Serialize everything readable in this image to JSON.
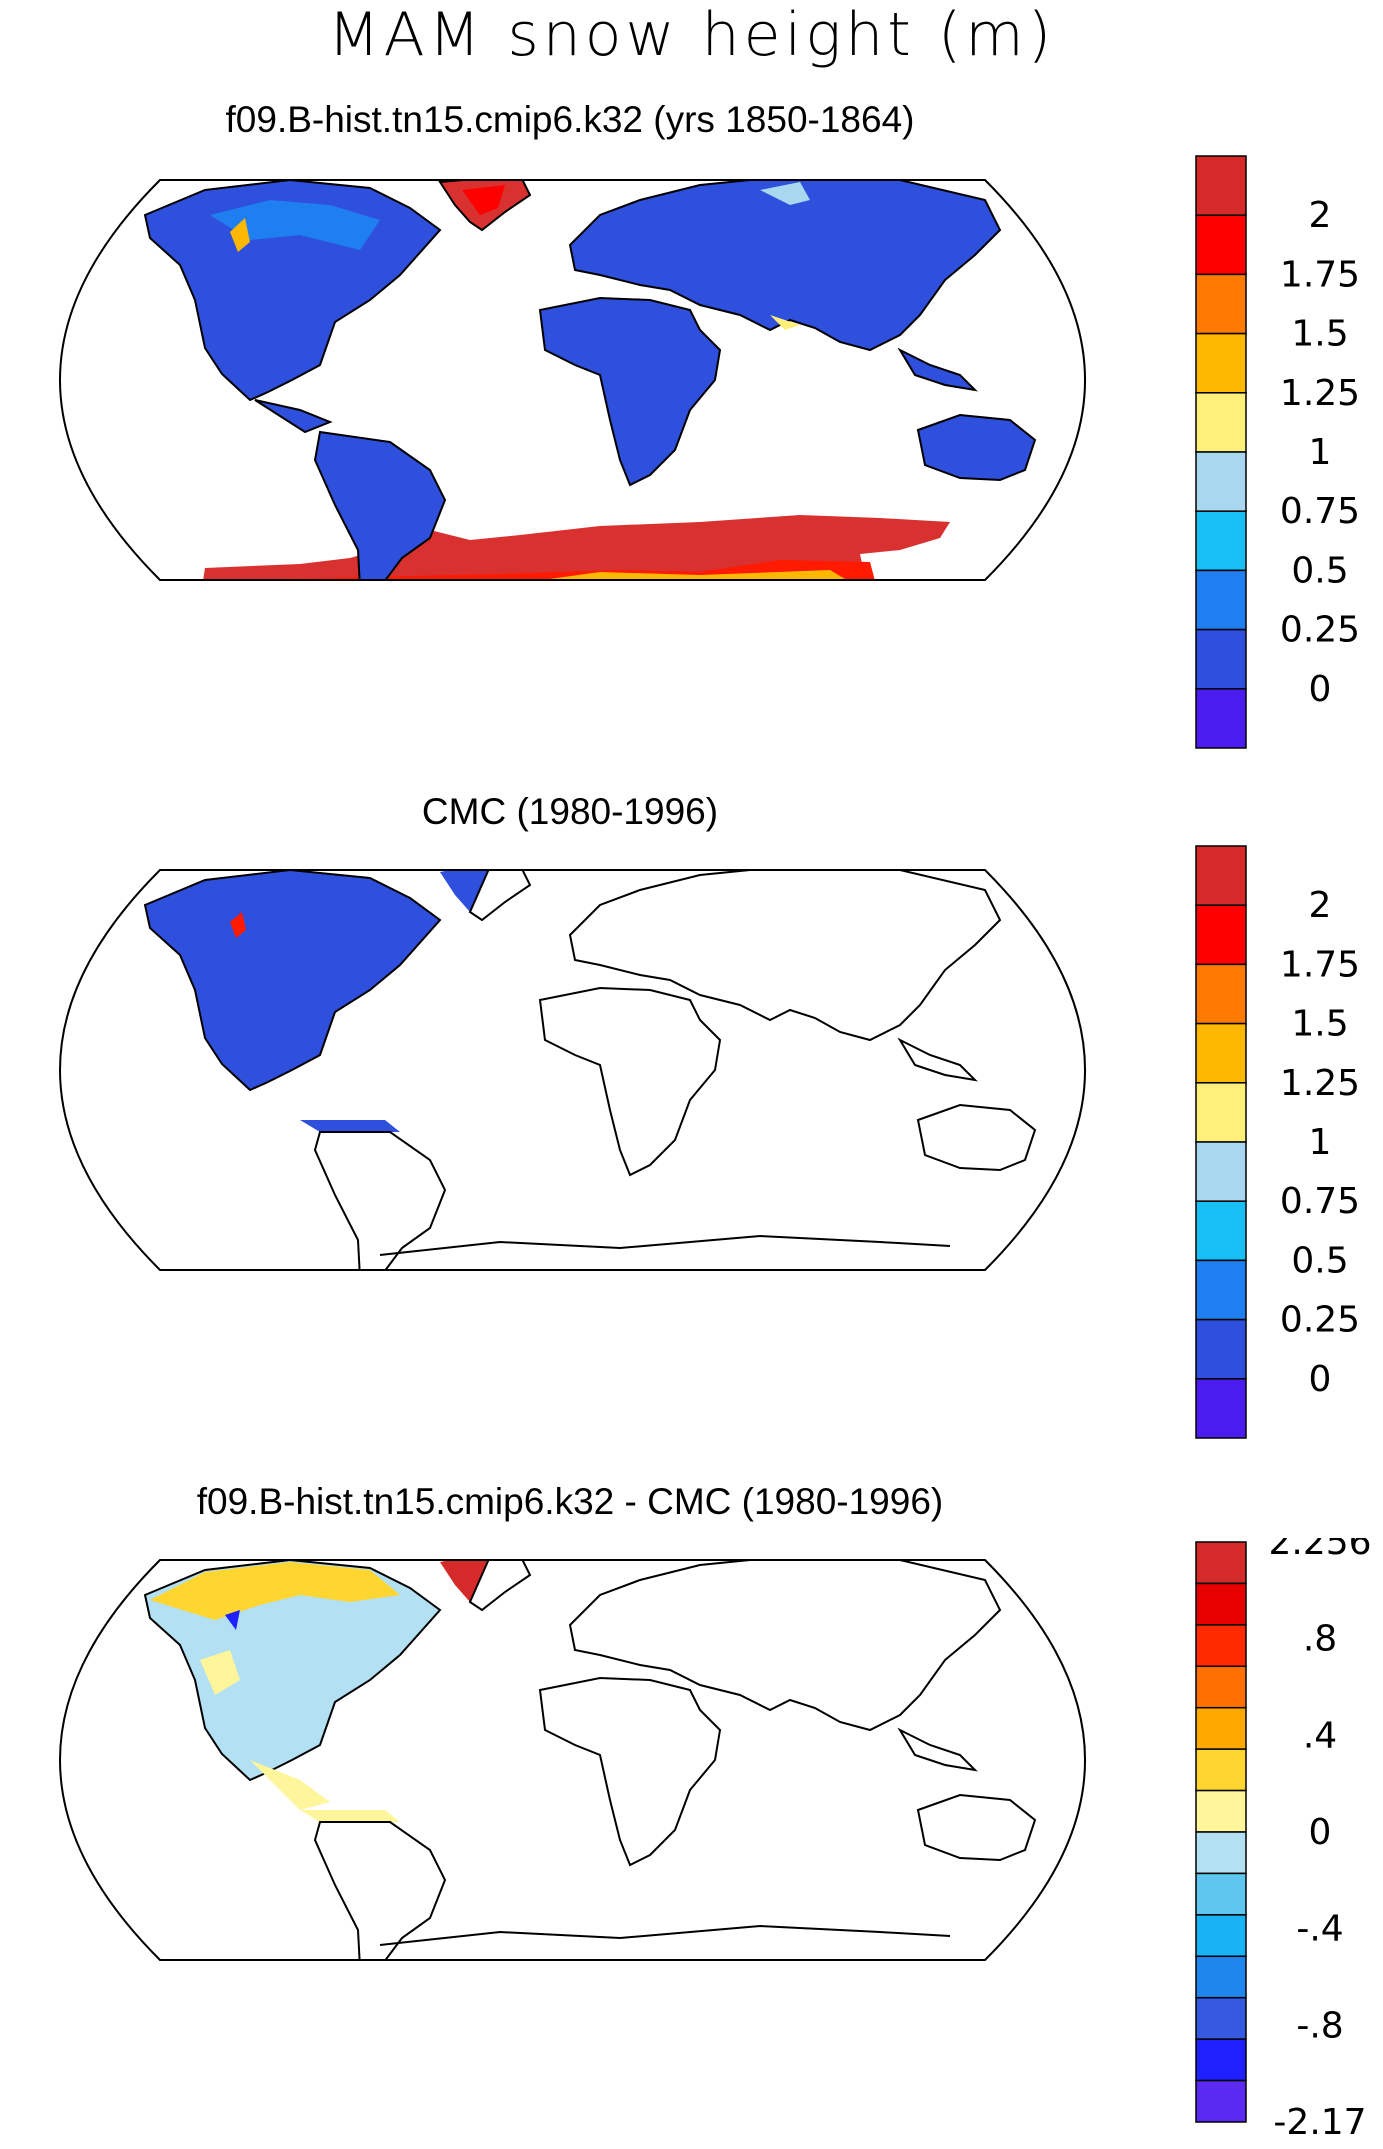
{
  "title": "MAM snow height (m)",
  "panels": [
    {
      "title": "f09.B-hist.tn15.cmip6.k32 (yrs 1850-1864)"
    },
    {
      "title": "CMC (1980-1996)"
    },
    {
      "title": "f09.B-hist.tn15.cmip6.k32 - CMC (1980-1996)"
    }
  ],
  "colorbars": {
    "absolute": {
      "labels": [
        "2",
        "1.75",
        "1.5",
        "1.25",
        "1",
        "0.75",
        "0.5",
        "0.25",
        "0"
      ],
      "colors": [
        "#d62a2a",
        "#ff0000",
        "#ff7a00",
        "#ffb800",
        "#fff07a",
        "#a8d8f0",
        "#18bff5",
        "#1f7ff0",
        "#2f4fdd",
        "#4a1cf0"
      ]
    },
    "difference": {
      "labels": [
        "2.256",
        ".8",
        ".4",
        "0",
        "-.4",
        "-.8",
        "-2.17"
      ],
      "colors": [
        "#d42a2a",
        "#e60000",
        "#ff2a00",
        "#ff7000",
        "#ffa800",
        "#ffd630",
        "#fff59a",
        "#b3e0f2",
        "#5fc6f0",
        "#18b2f5",
        "#1f86ee",
        "#3559e0",
        "#1f1fff",
        "#5a2af0"
      ]
    }
  }
}
